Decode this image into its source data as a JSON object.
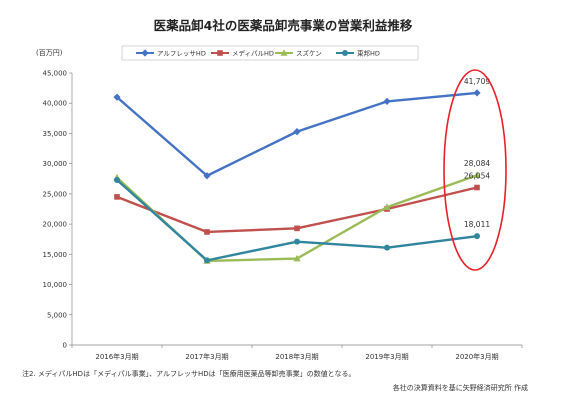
{
  "chart_data": {
    "type": "line",
    "title": "医薬品卸4社の医薬品卸売事業の営業利益推移",
    "unit_label": "(百万円)",
    "categories": [
      "2016年3月期",
      "2017年3月期",
      "2018年3月期",
      "2019年3月期",
      "2020年3月期"
    ],
    "yticks": [
      "0",
      "5,000",
      "10,000",
      "15,000",
      "20,000",
      "25,000",
      "30,000",
      "35,000",
      "40,000",
      "45,000"
    ],
    "ylim": [
      0,
      45000
    ],
    "grid": false,
    "legend_position": "top",
    "series": [
      {
        "name": "アルフレッサHD",
        "color": "#4472C4",
        "marker": "diamond",
        "values": [
          41000,
          28000,
          35300,
          40300,
          41709
        ]
      },
      {
        "name": "メディパルHD",
        "color": "#C0504D",
        "marker": "square",
        "values": [
          24500,
          18700,
          19300,
          22500,
          26054
        ]
      },
      {
        "name": "スズケン",
        "color": "#9BBB59",
        "marker": "triangle",
        "values": [
          27700,
          13900,
          14300,
          22800,
          28084
        ]
      },
      {
        "name": "東邦HD",
        "color": "#31859C",
        "marker": "circle",
        "values": [
          27300,
          14000,
          17100,
          16100,
          18011
        ]
      }
    ],
    "data_labels": [
      {
        "series": 0,
        "index": 4,
        "text": "41,709"
      },
      {
        "series": 2,
        "index": 4,
        "text": "28,084"
      },
      {
        "series": 1,
        "index": 4,
        "text": "26,054"
      },
      {
        "series": 3,
        "index": 4,
        "text": "18,011"
      }
    ],
    "highlight": {
      "shape": "ellipse",
      "color": "#E8202A",
      "index": 4
    }
  },
  "footer": {
    "note": "注2. メディパルHDは「メディパル事業」、アルフレッサHDは「医療用医薬品等卸売事業」の数値となる。",
    "source": "各社の決算資料を基に矢野経済研究所 作成"
  }
}
